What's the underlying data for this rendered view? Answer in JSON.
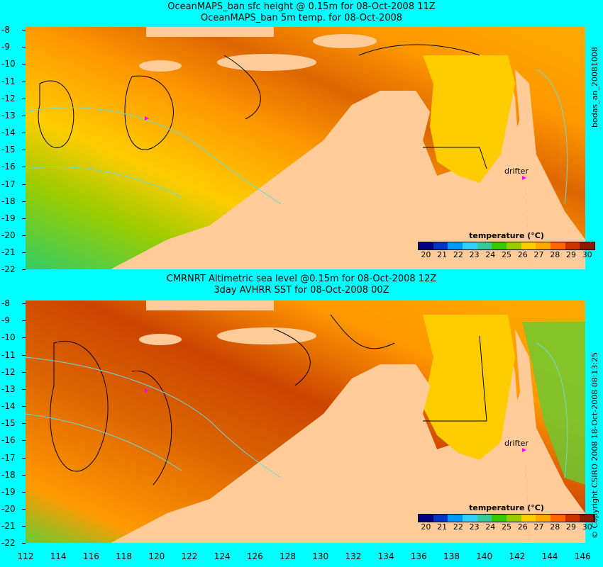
{
  "top": {
    "title1": "OceanMAPS_ban sfc height @ 0.15m for 08-Oct-2008 11Z",
    "title2": "OceanMAPS_ban 5m temp. for 08-Oct-2008",
    "drifter_label": "drifter"
  },
  "bottom": {
    "title1": "CMRNRT Altimetric sea level  @0.15m  for 08-Oct-2008 12Z",
    "title2": "3day AVHRR SST for 08-Oct-2008 00Z",
    "drifter_label": "drifter"
  },
  "side_labels": {
    "top_right": "bodas_an_20081008",
    "bottom_right": "© Copyright CSIRO 2008  18-Oct-2008 08:13:25"
  },
  "legend": {
    "title": "temperature (°C)",
    "ticks": [
      "20",
      "21",
      "22",
      "23",
      "24",
      "25",
      "26",
      "27",
      "28",
      "29",
      "30"
    ],
    "colors": [
      "#00007f",
      "#0033cc",
      "#0099ff",
      "#33ccff",
      "#33cc99",
      "#33cc00",
      "#99cc00",
      "#ffcc00",
      "#ffaa00",
      "#ff6600",
      "#cc3300",
      "#8b1a00"
    ]
  },
  "axes": {
    "y_ticks": [
      "-8",
      "-9",
      "-10",
      "-11",
      "-12",
      "-13",
      "-14",
      "-15",
      "-16",
      "-17",
      "-18",
      "-19",
      "-20",
      "-21",
      "-22"
    ],
    "x_ticks": [
      "112",
      "114",
      "116",
      "118",
      "120",
      "122",
      "124",
      "126",
      "128",
      "130",
      "132",
      "134",
      "136",
      "138",
      "140",
      "142",
      "144",
      "146"
    ]
  },
  "colors": {
    "land": "#ffcc99",
    "background": "#00ffff",
    "contour": "#000000",
    "bathymetry": "#66dddd",
    "drifter_marker": "#ff00ff"
  }
}
